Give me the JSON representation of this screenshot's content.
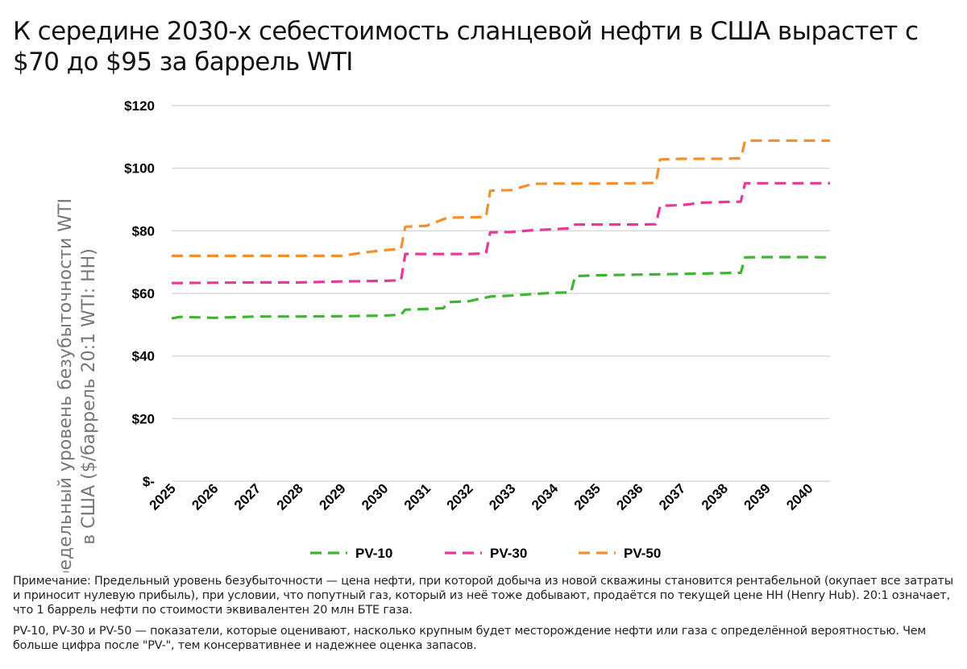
{
  "title": "К середине 2030-х себестоимость сланцевой нефти в США вырастет с $70 до $95 за баррель WTI",
  "chart_data": {
    "type": "line",
    "title": "К середине 2030-х себестоимость сланцевой нефти в США вырастет с $70 до $95 за баррель WTI",
    "ylabel_lines": [
      "Предельный уровень безубыточности WTI",
      "в США ($/баррель 20:1 WTI: HH)"
    ],
    "xlabel": "",
    "categories": [
      "2025",
      "2026",
      "2027",
      "2028",
      "2029",
      "2030",
      "2031",
      "2032",
      "2033",
      "2034",
      "2035",
      "2036",
      "2037",
      "2038",
      "2039",
      "2040"
    ],
    "y_tick_labels": [
      "$-",
      "$20",
      "$40",
      "$60",
      "$80",
      "$100",
      "$120"
    ],
    "y_ticks": [
      0,
      20,
      40,
      60,
      80,
      100,
      120
    ],
    "ylim": [
      0,
      120
    ],
    "xlim": [
      2025,
      2040.5
    ],
    "grid": true,
    "legend_position": "bottom",
    "series": [
      {
        "name": "PV-10",
        "color": "#3cb52f",
        "x": [
          2025,
          2025.2,
          2026,
          2027,
          2028,
          2029,
          2030,
          2030.4,
          2030.5,
          2031,
          2031.4,
          2031.5,
          2032,
          2032.5,
          2033,
          2033.5,
          2034,
          2034.4,
          2034.5,
          2035,
          2036,
          2037,
          2038,
          2038.4,
          2038.5,
          2039,
          2040,
          2040.5
        ],
        "values": [
          52,
          52.5,
          52.2,
          52.6,
          52.6,
          52.7,
          52.9,
          53.2,
          54.8,
          55,
          55.3,
          57.2,
          57.5,
          59,
          59.3,
          59.8,
          60.2,
          60.3,
          65.5,
          65.8,
          66,
          66.2,
          66.5,
          66.6,
          71.5,
          71.6,
          71.6,
          71.5
        ]
      },
      {
        "name": "PV-30",
        "color": "#e8399a",
        "x": [
          2025,
          2026,
          2027,
          2028,
          2029,
          2030,
          2030.4,
          2030.5,
          2031,
          2031.5,
          2032,
          2032.4,
          2032.5,
          2033,
          2033.5,
          2034,
          2034.4,
          2034.5,
          2035,
          2036,
          2036.4,
          2036.5,
          2037,
          2037.5,
          2038,
          2038.4,
          2038.5,
          2039,
          2040,
          2040.5
        ],
        "values": [
          63.3,
          63.4,
          63.5,
          63.5,
          63.8,
          64,
          64.2,
          72.6,
          72.6,
          72.6,
          72.6,
          72.8,
          79.5,
          79.6,
          80.2,
          80.5,
          80.8,
          82,
          82,
          82,
          82.1,
          88,
          88.2,
          89,
          89.2,
          89.3,
          95.2,
          95.2,
          95.2,
          95.2
        ]
      },
      {
        "name": "PV-50",
        "color": "#f58f2a",
        "x": [
          2025,
          2026,
          2027,
          2028,
          2029,
          2029.5,
          2030,
          2030.4,
          2030.5,
          2031,
          2031.5,
          2032,
          2032.4,
          2032.5,
          2033,
          2033.5,
          2034,
          2035,
          2036,
          2036.4,
          2036.5,
          2037,
          2038,
          2038.4,
          2038.5,
          2039,
          2040,
          2040.5
        ],
        "values": [
          72,
          72,
          72,
          72,
          72,
          73,
          73.8,
          74.2,
          81.3,
          81.6,
          84.2,
          84.3,
          84.4,
          92.8,
          93,
          95,
          95.1,
          95.1,
          95.2,
          95.3,
          102.8,
          103,
          103,
          103.2,
          108.8,
          108.8,
          108.8,
          108.8
        ]
      }
    ]
  },
  "notes": {
    "p1": "Примечание: Предельный уровень безубыточности — цена нефти, при которой добыча из новой скважины становится рентабельной (окупает все затраты и приносит нулевую прибыль), при условии, что попутный газ, который из неё тоже добывают, продаётся по текущей цене HH (Henry Hub). 20:1 означает, что 1 баррель нефти по стоимости эквивалентен 20 млн БТЕ газа.",
    "p2": "PV-10, PV-30 и PV-50 — показатели, которые оценивают, насколько крупным будет месторождение нефти или газа с определённой вероятностью. Чем больше цифра после \"PV-\", тем консервативнее и надежнее оценка запасов."
  }
}
